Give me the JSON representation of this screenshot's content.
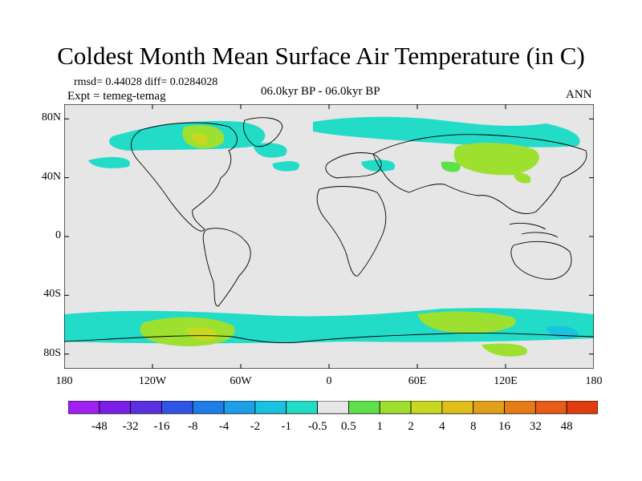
{
  "title": "Coldest Month Mean Surface Air Temperature (in C)",
  "stats_line": "rmsd= 0.44028 diff= 0.0284028",
  "experiment_line": "Expt = temeg-temag",
  "center_label": "06.0kyr BP - 06.0kyr BP",
  "season_label": "ANN",
  "map": {
    "lon_range": [
      -180,
      180
    ],
    "lat_range": [
      -90,
      90
    ],
    "lat_ticks": [
      {
        "value": 80,
        "label": "80N"
      },
      {
        "value": 40,
        "label": "40N"
      },
      {
        "value": 0,
        "label": "0"
      },
      {
        "value": -40,
        "label": "40S"
      },
      {
        "value": -80,
        "label": "80S"
      }
    ],
    "lon_ticks": [
      {
        "value": -180,
        "label": "180"
      },
      {
        "value": -120,
        "label": "120W"
      },
      {
        "value": -60,
        "label": "60W"
      },
      {
        "value": 0,
        "label": "0"
      },
      {
        "value": 60,
        "label": "60E"
      },
      {
        "value": 120,
        "label": "120E"
      },
      {
        "value": 180,
        "label": "180"
      }
    ],
    "background_color": "#e6e6e6",
    "coast_color": "#000000"
  },
  "colorbar": {
    "colors": [
      "#a020f0",
      "#7a1fe8",
      "#5a30e0",
      "#2f55e6",
      "#1e7ee8",
      "#1c9fe6",
      "#19c3e0",
      "#22dcc8",
      "#e6e6e6",
      "#5ee04a",
      "#9ee030",
      "#c8d820",
      "#e0c018",
      "#e0a018",
      "#e67c18",
      "#e65c18",
      "#e03c10"
    ],
    "labels": [
      "-48",
      "-32",
      "-16",
      "-8",
      "-4",
      "-2",
      "-1",
      "-0.5",
      "0.5",
      "1",
      "2",
      "4",
      "8",
      "16",
      "32",
      "48"
    ]
  }
}
